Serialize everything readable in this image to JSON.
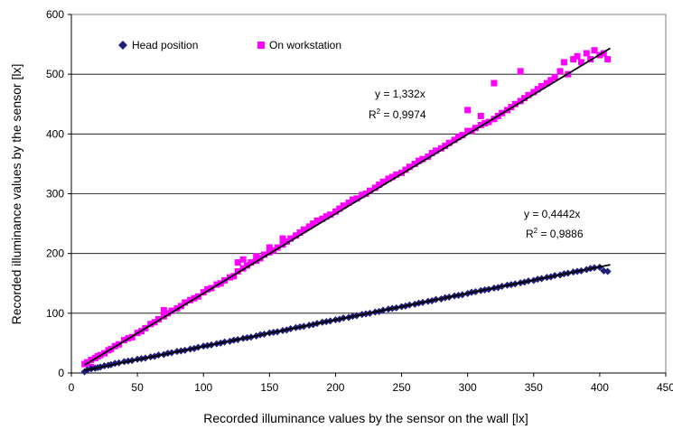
{
  "chart_data": {
    "type": "scatter",
    "title": "",
    "xlabel": "Recorded illuminance values by the sensor on the wall [lx]",
    "ylabel": "Recorded illuminance values by the sensor [lx]",
    "xlim": [
      0,
      450
    ],
    "ylim": [
      0,
      600
    ],
    "xticks": [
      0,
      50,
      100,
      150,
      200,
      250,
      300,
      350,
      400,
      450
    ],
    "yticks": [
      0,
      100,
      200,
      300,
      400,
      500,
      600
    ],
    "grid": "horizontal",
    "legend_position": "top-left",
    "series": [
      {
        "name": "Head position",
        "color": "#1f1f7a",
        "marker": "diamond",
        "trendline": {
          "slope": 0.4442,
          "equation": "y = 0,4442x",
          "r2_label": "R",
          "r2_sup": "2",
          "r2_value": " = 0,9886"
        },
        "x": [
          10,
          12,
          15,
          18,
          20,
          22,
          25,
          28,
          30,
          33,
          36,
          40,
          43,
          46,
          50,
          53,
          56,
          60,
          63,
          66,
          70,
          73,
          76,
          80,
          83,
          86,
          90,
          93,
          96,
          100,
          103,
          106,
          110,
          113,
          116,
          120,
          123,
          126,
          130,
          133,
          136,
          140,
          143,
          146,
          150,
          153,
          156,
          160,
          163,
          166,
          170,
          173,
          176,
          180,
          183,
          186,
          190,
          193,
          196,
          200,
          203,
          206,
          210,
          213,
          216,
          220,
          223,
          226,
          230,
          233,
          236,
          240,
          243,
          246,
          250,
          253,
          256,
          260,
          263,
          266,
          270,
          273,
          276,
          280,
          283,
          286,
          290,
          293,
          296,
          300,
          303,
          306,
          310,
          313,
          316,
          320,
          323,
          326,
          330,
          333,
          336,
          340,
          343,
          346,
          350,
          353,
          356,
          360,
          363,
          366,
          370,
          373,
          376,
          380,
          383,
          386,
          390,
          393,
          396,
          400,
          403,
          406
        ],
        "y": [
          2,
          5,
          7,
          8,
          9,
          10,
          12,
          13,
          14,
          16,
          17,
          19,
          20,
          21,
          23,
          24,
          25,
          27,
          28,
          30,
          31,
          33,
          34,
          36,
          37,
          38,
          40,
          41,
          43,
          45,
          46,
          47,
          49,
          50,
          52,
          53,
          55,
          56,
          58,
          59,
          60,
          62,
          64,
          65,
          67,
          68,
          69,
          71,
          72,
          74,
          76,
          77,
          78,
          80,
          81,
          83,
          85,
          86,
          87,
          89,
          90,
          92,
          93,
          95,
          96,
          98,
          99,
          100,
          102,
          103,
          105,
          107,
          108,
          109,
          111,
          112,
          114,
          115,
          117,
          118,
          120,
          121,
          123,
          124,
          126,
          127,
          129,
          130,
          131,
          133,
          135,
          136,
          138,
          139,
          140,
          142,
          143,
          145,
          147,
          148,
          149,
          151,
          152,
          154,
          155,
          157,
          158,
          160,
          161,
          163,
          164,
          166,
          167,
          169,
          170,
          171,
          173,
          175,
          176,
          177,
          171,
          170
        ]
      },
      {
        "name": "On workstation",
        "color": "#ff00ff",
        "marker": "square",
        "trendline": {
          "slope": 1.332,
          "equation": "y = 1,332x",
          "r2_label": "R",
          "r2_sup": "2",
          "r2_value": " = 0,9974"
        },
        "x": [
          10,
          12,
          15,
          15,
          18,
          20,
          22,
          25,
          28,
          30,
          33,
          36,
          40,
          43,
          46,
          50,
          53,
          56,
          60,
          63,
          66,
          70,
          70,
          73,
          76,
          80,
          83,
          86,
          90,
          93,
          96,
          100,
          103,
          106,
          110,
          113,
          116,
          120,
          123,
          126,
          126,
          130,
          130,
          133,
          136,
          140,
          140,
          143,
          146,
          150,
          150,
          153,
          156,
          160,
          160,
          163,
          166,
          170,
          173,
          176,
          180,
          183,
          186,
          190,
          193,
          196,
          200,
          203,
          206,
          210,
          213,
          216,
          220,
          223,
          226,
          230,
          233,
          236,
          240,
          243,
          246,
          250,
          253,
          256,
          260,
          263,
          266,
          270,
          273,
          276,
          280,
          283,
          286,
          290,
          293,
          296,
          300,
          300,
          303,
          306,
          310,
          310,
          313,
          316,
          320,
          320,
          323,
          326,
          330,
          333,
          336,
          340,
          340,
          343,
          346,
          350,
          353,
          356,
          360,
          363,
          366,
          370,
          373,
          376,
          380,
          383,
          386,
          390,
          393,
          396,
          400,
          403,
          406
        ],
        "y": [
          15,
          18,
          22,
          10,
          25,
          28,
          30,
          33,
          38,
          40,
          45,
          48,
          55,
          58,
          60,
          67,
          70,
          75,
          82,
          85,
          90,
          95,
          105,
          100,
          104,
          108,
          112,
          118,
          122,
          125,
          128,
          135,
          140,
          142,
          148,
          150,
          155,
          160,
          162,
          170,
          185,
          175,
          190,
          180,
          185,
          188,
          195,
          192,
          198,
          202,
          210,
          205,
          210,
          215,
          225,
          220,
          225,
          230,
          235,
          240,
          245,
          250,
          255,
          258,
          262,
          265,
          270,
          275,
          280,
          285,
          290,
          292,
          298,
          300,
          305,
          310,
          315,
          320,
          325,
          328,
          332,
          335,
          340,
          345,
          350,
          355,
          358,
          362,
          368,
          372,
          376,
          380,
          385,
          390,
          395,
          398,
          405,
          440,
          405,
          410,
          415,
          430,
          418,
          420,
          425,
          485,
          430,
          435,
          440,
          445,
          450,
          455,
          505,
          460,
          465,
          470,
          475,
          480,
          485,
          490,
          495,
          505,
          520,
          500,
          525,
          530,
          520,
          535,
          525,
          540,
          532,
          535,
          525
        ]
      }
    ]
  }
}
